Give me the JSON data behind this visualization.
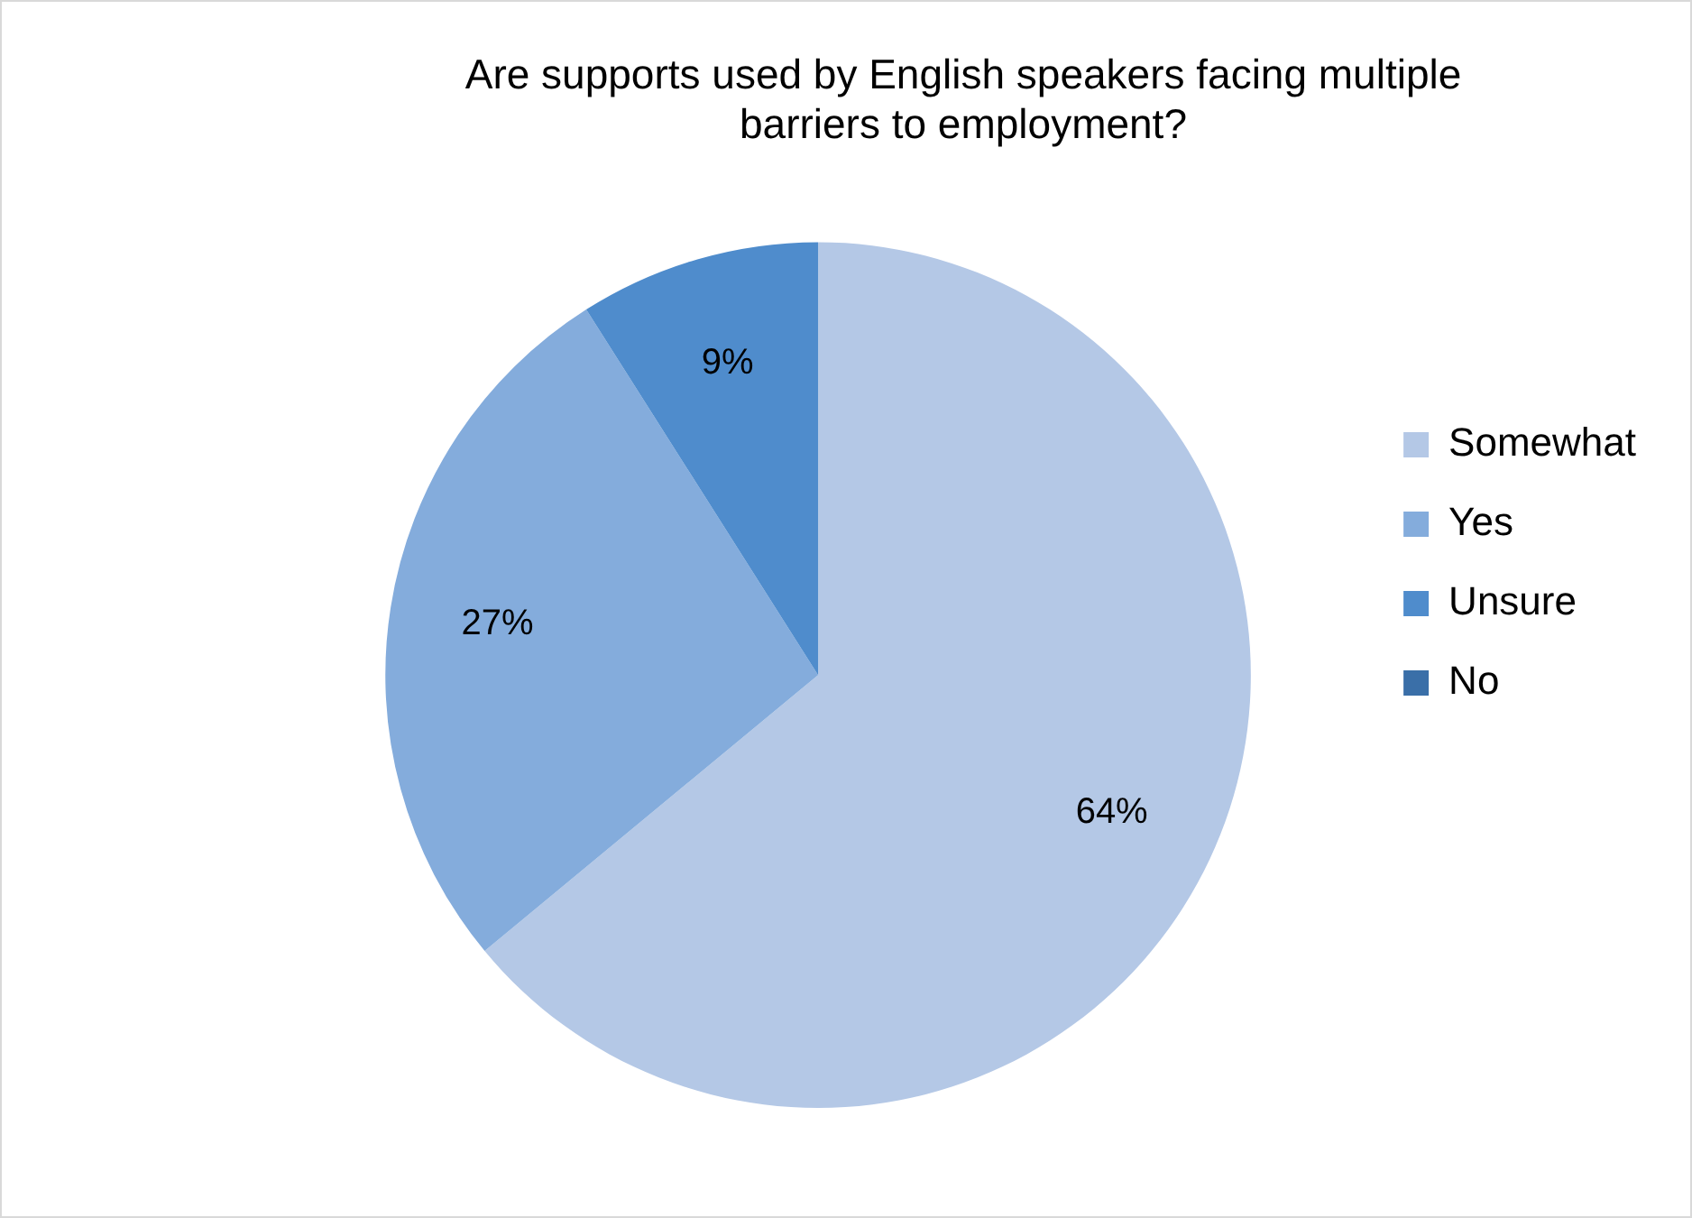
{
  "chart_data": {
    "type": "pie",
    "title": "Are supports used by English speakers facing multiple barriers to employment?",
    "categories": [
      "Somewhat",
      "Yes",
      "Unsure",
      "No"
    ],
    "values": [
      64,
      27,
      9,
      0
    ],
    "colors": [
      "#b4c8e6",
      "#84acdc",
      "#4f8ccc",
      "#3a6fa8"
    ],
    "value_labels": [
      "64%",
      "27%",
      "9%",
      null
    ],
    "legend": "right"
  }
}
